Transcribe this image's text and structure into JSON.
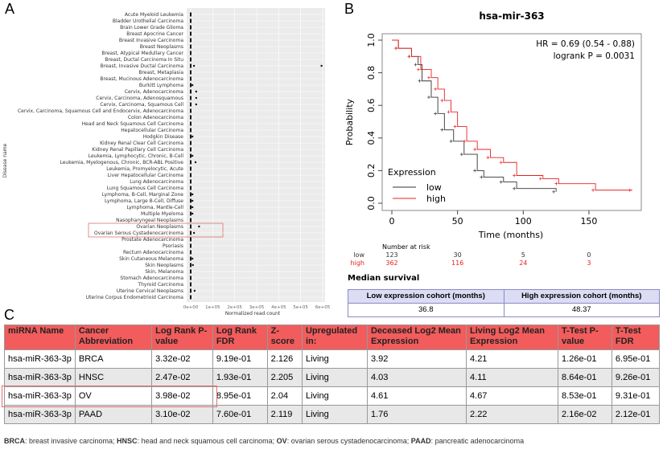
{
  "panels": {
    "a": "A",
    "b": "B",
    "c": "C"
  },
  "chart_data": [
    {
      "type": "scatter",
      "xlabel": "Normalized read count",
      "ylabel": "Disease name",
      "xticks": [
        "0e+00",
        "1e+05",
        "2e+05",
        "3e+05",
        "4e+05",
        "5e+05",
        "6e+05"
      ],
      "xlim": [
        0,
        600000
      ],
      "categories": [
        "Acute Myeloid Leukemia",
        "Bladder Urothelial Carcinoma",
        "Brain Lower Grade Glioma",
        "Breast Apocrine Cancer",
        "Breast Invasive Carcinoma",
        "Breast Neoplasms",
        "Breast, Atypical Medullary Cancer",
        "Breast, Ductal Carcinoma In Situ",
        "Breast, Invasive Ductal Carcinoma",
        "Breast, Metaplasia",
        "Breast, Mucinous Adenocarcinoma",
        "Burkitt Lymphoma",
        "Cervix, Adenocarcinoma",
        "Cervix, Carcinoma, Adenosquamous",
        "Cervix, Carcinoma, Squamous Cell",
        "Cervix, Carcinoma, Squamous Cell and Endocervix, Adenocarcinoma",
        "Colon Adenocarcinoma",
        "Head and Neck Squamous Cell Carcinoma",
        "Hepatocellular Carcinoma",
        "Hodgkin Disease",
        "Kidney Renal Clear Cell Carcinoma",
        "Kidney Renal Papillary Cell Carcinoma",
        "Leukemia, Lymphocytic, Chronic, B-Cell",
        "Leukemia, Myelogenous, Chronic, BCR-ABL Positive",
        "Leukemia, Promyelocytic, Acute",
        "Liver Hepatocellular Carcinoma",
        "Lung Adenocarcinoma",
        "Lung Squamous Cell Carcinoma",
        "Lymphoma, B-Cell, Marginal Zone",
        "Lymphoma, Large B-Cell, Diffuse",
        "Lymphoma, Mantle-Cell",
        "Multiple Myeloma",
        "Nasopharyngeal Neoplasms",
        "Ovarian Neoplasms",
        "Ovarian Serous Cystadenocarcinoma",
        "Prostate Adenocarcinoma",
        "Psoriasis",
        "Rectum Adenocarcinoma",
        "Skin Cutaneous Melanoma",
        "Skin Neoplasms",
        "Skin, Melanoma",
        "Stomach Adenocarcinoma",
        "Thyroid Carcinoma",
        "Uterine Cervical Neoplasms",
        "Uterine Corpus Endometrioid Carcinoma"
      ],
      "outliers": {
        "Breast, Invasive Ductal Carcinoma": [
          15000,
          595000
        ],
        "Burkitt Lymphoma": [
          8000
        ],
        "Cervix, Adenocarcinoma": [
          25000
        ],
        "Cervix, Carcinoma, Adenosquamous": [
          25000
        ],
        "Cervix, Carcinoma, Squamous Cell": [
          25000
        ],
        "Hodgkin Disease": [
          8000
        ],
        "Leukemia, Lymphocytic, Chronic, B-Cell": [
          8000
        ],
        "Leukemia, Myelogenous, Chronic, BCR-ABL Positive": [
          22000
        ],
        "Lymphoma, B-Cell, Marginal Zone": [
          8000
        ],
        "Lymphoma, Large B-Cell, Diffuse": [
          8000
        ],
        "Lymphoma, Mantle-Cell": [
          8000
        ],
        "Multiple Myeloma": [
          8000
        ],
        "Ovarian Neoplasms": [
          38000
        ],
        "Ovarian Serous Cystadenocarcinoma": [
          15000
        ],
        "Skin Cutaneous Melanoma": [
          8000
        ],
        "Skin Neoplasms": [
          10000
        ],
        "Uterine Cervical Neoplasms": [
          18000
        ]
      },
      "highlighted": [
        "Ovarian Neoplasms",
        "Ovarian Serous Cystadenocarcinoma"
      ]
    },
    {
      "type": "line",
      "title": "hsa-mir-363",
      "xlabel": "Time (months)",
      "ylabel": "Probability",
      "xlim": [
        0,
        185
      ],
      "ylim": [
        0,
        1
      ],
      "xticks": [
        "0",
        "50",
        "100",
        "150"
      ],
      "yticks": [
        "0.0",
        "0.2",
        "0.4",
        "0.6",
        "0.8",
        "1.0"
      ],
      "annotation": [
        "HR = 0.69 (0.54 - 0.88)",
        "logrank P = 0.0031"
      ],
      "legend": {
        "title": "Expression",
        "placement": "bottom-left"
      },
      "series": [
        {
          "name": "low",
          "color": "#333333",
          "x": [
            0,
            5,
            15,
            20,
            23,
            30,
            35,
            40,
            47,
            55,
            65,
            70,
            85,
            95,
            125
          ],
          "y": [
            1,
            0.95,
            0.9,
            0.85,
            0.75,
            0.65,
            0.55,
            0.45,
            0.38,
            0.3,
            0.2,
            0.16,
            0.13,
            0.09,
            0.07
          ]
        },
        {
          "name": "high",
          "color": "#e82020",
          "x": [
            0,
            5,
            15,
            22,
            30,
            35,
            40,
            45,
            50,
            57,
            65,
            75,
            85,
            95,
            115,
            127,
            155,
            183
          ],
          "y": [
            1,
            0.95,
            0.9,
            0.82,
            0.77,
            0.7,
            0.63,
            0.56,
            0.47,
            0.38,
            0.33,
            0.28,
            0.25,
            0.17,
            0.15,
            0.12,
            0.08,
            0.08
          ]
        }
      ],
      "risk": {
        "title": "Number at risk",
        "low": [
          "low",
          "123",
          "30",
          "5",
          "0"
        ],
        "high": [
          "high",
          "362",
          "116",
          "24",
          "3"
        ]
      }
    }
  ],
  "median": {
    "title": "Median survival",
    "headers": [
      "Low expression cohort (months)",
      "High expression cohort (months)"
    ],
    "values": [
      "36.8",
      "48.37"
    ]
  },
  "table": {
    "headers": [
      "miRNA Name",
      "Cancer Abbreviation",
      "Log Rank P-value",
      "Log Rank FDR",
      "Z-score",
      "Upregulated in:",
      "Deceased Log2 Mean Expression",
      "Living Log2 Mean Expression",
      "T-Test P-value",
      "T-Test FDR"
    ],
    "rows": [
      [
        "hsa-miR-363-3p",
        "BRCA",
        "3.32e-02",
        "9.19e-01",
        "2.126",
        "Living",
        "3.92",
        "4.21",
        "1.26e-01",
        "6.95e-01"
      ],
      [
        "hsa-miR-363-3p",
        "HNSC",
        "2.47e-02",
        "1.93e-01",
        "2.205",
        "Living",
        "4.03",
        "4.11",
        "8.64e-01",
        "9.26e-01"
      ],
      [
        "hsa-miR-363-3p",
        "OV",
        "3.98e-02",
        "8.95e-01",
        "2.04",
        "Living",
        "4.61",
        "4.67",
        "8.53e-01",
        "9.31e-01"
      ],
      [
        "hsa-miR-363-3p",
        "PAAD",
        "3.10e-02",
        "7.60e-01",
        "2.119",
        "Living",
        "1.76",
        "2.22",
        "2.16e-02",
        "2.12e-01"
      ]
    ]
  },
  "footnote": [
    [
      "BRCA",
      ": breast invasive carcinoma; "
    ],
    [
      "HNSC",
      ": head and neck squamous cell carcinoma; "
    ],
    [
      "OV",
      ": ovarian serous cystadenocarcinoma; "
    ],
    [
      "PAAD",
      ": pancreatic adenocarcinoma"
    ]
  ]
}
